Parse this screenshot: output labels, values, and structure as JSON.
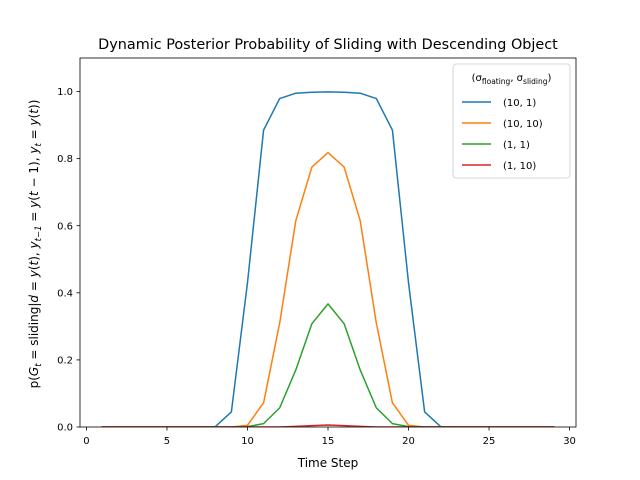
{
  "chart_data": {
    "type": "line",
    "title": "Dynamic Posterior Probability of Sliding with Descending Object",
    "xlabel": "Time Step",
    "ylabel": "p(G_t = sliding | d = y(t), y_{t−1} = y(t − 1), y_t = y(t))",
    "xlim": [
      -0.4,
      30.4
    ],
    "ylim": [
      0.0,
      1.1
    ],
    "xticks": [
      0,
      5,
      10,
      15,
      20,
      25,
      30
    ],
    "yticks": [
      0.0,
      0.2,
      0.4,
      0.6,
      0.8,
      1.0
    ],
    "xtick_labels": [
      "0",
      "5",
      "10",
      "15",
      "20",
      "25",
      "30"
    ],
    "ytick_labels": [
      "0.0",
      "0.2",
      "0.4",
      "0.6",
      "0.8",
      "1.0"
    ],
    "grid": false,
    "legend": {
      "placement": "top-right",
      "title_prefix": "(σ",
      "title_sub1": "floating",
      "title_mid": ", σ",
      "title_sub2": "sliding",
      "title_suffix": ")"
    },
    "x": [
      1,
      2,
      3,
      4,
      5,
      6,
      7,
      8,
      9,
      10,
      11,
      12,
      13,
      14,
      15,
      16,
      17,
      18,
      19,
      20,
      21,
      22,
      23,
      24,
      25,
      26,
      27,
      28,
      29
    ],
    "series": [
      {
        "name": "(10, 1)",
        "color": "#1f77b4",
        "values": [
          0,
          0,
          0,
          0,
          0,
          0,
          0,
          0.001,
          0.045,
          0.43,
          0.885,
          0.979,
          0.995,
          0.998,
          0.999,
          0.998,
          0.995,
          0.979,
          0.885,
          0.43,
          0.045,
          0.001,
          0,
          0,
          0,
          0,
          0,
          0,
          0
        ]
      },
      {
        "name": "(10, 10)",
        "color": "#ff7f0e",
        "values": [
          0,
          0,
          0,
          0,
          0,
          0,
          0,
          0,
          0,
          0.005,
          0.072,
          0.31,
          0.615,
          0.775,
          0.818,
          0.775,
          0.615,
          0.31,
          0.072,
          0.005,
          0,
          0,
          0,
          0,
          0,
          0,
          0,
          0,
          0
        ]
      },
      {
        "name": "(1, 1)",
        "color": "#2ca02c",
        "values": [
          0,
          0,
          0,
          0,
          0,
          0,
          0,
          0,
          0,
          0.001,
          0.01,
          0.057,
          0.17,
          0.308,
          0.367,
          0.308,
          0.17,
          0.057,
          0.01,
          0.001,
          0,
          0,
          0,
          0,
          0,
          0,
          0,
          0,
          0
        ]
      },
      {
        "name": "(1, 10)",
        "color": "#d62728",
        "values": [
          0,
          0,
          0,
          0,
          0,
          0,
          0,
          0,
          0,
          0,
          0,
          0,
          0.002,
          0.004,
          0.006,
          0.004,
          0.002,
          0,
          0,
          0,
          0,
          0,
          0,
          0,
          0,
          0,
          0,
          0,
          0
        ]
      }
    ]
  }
}
